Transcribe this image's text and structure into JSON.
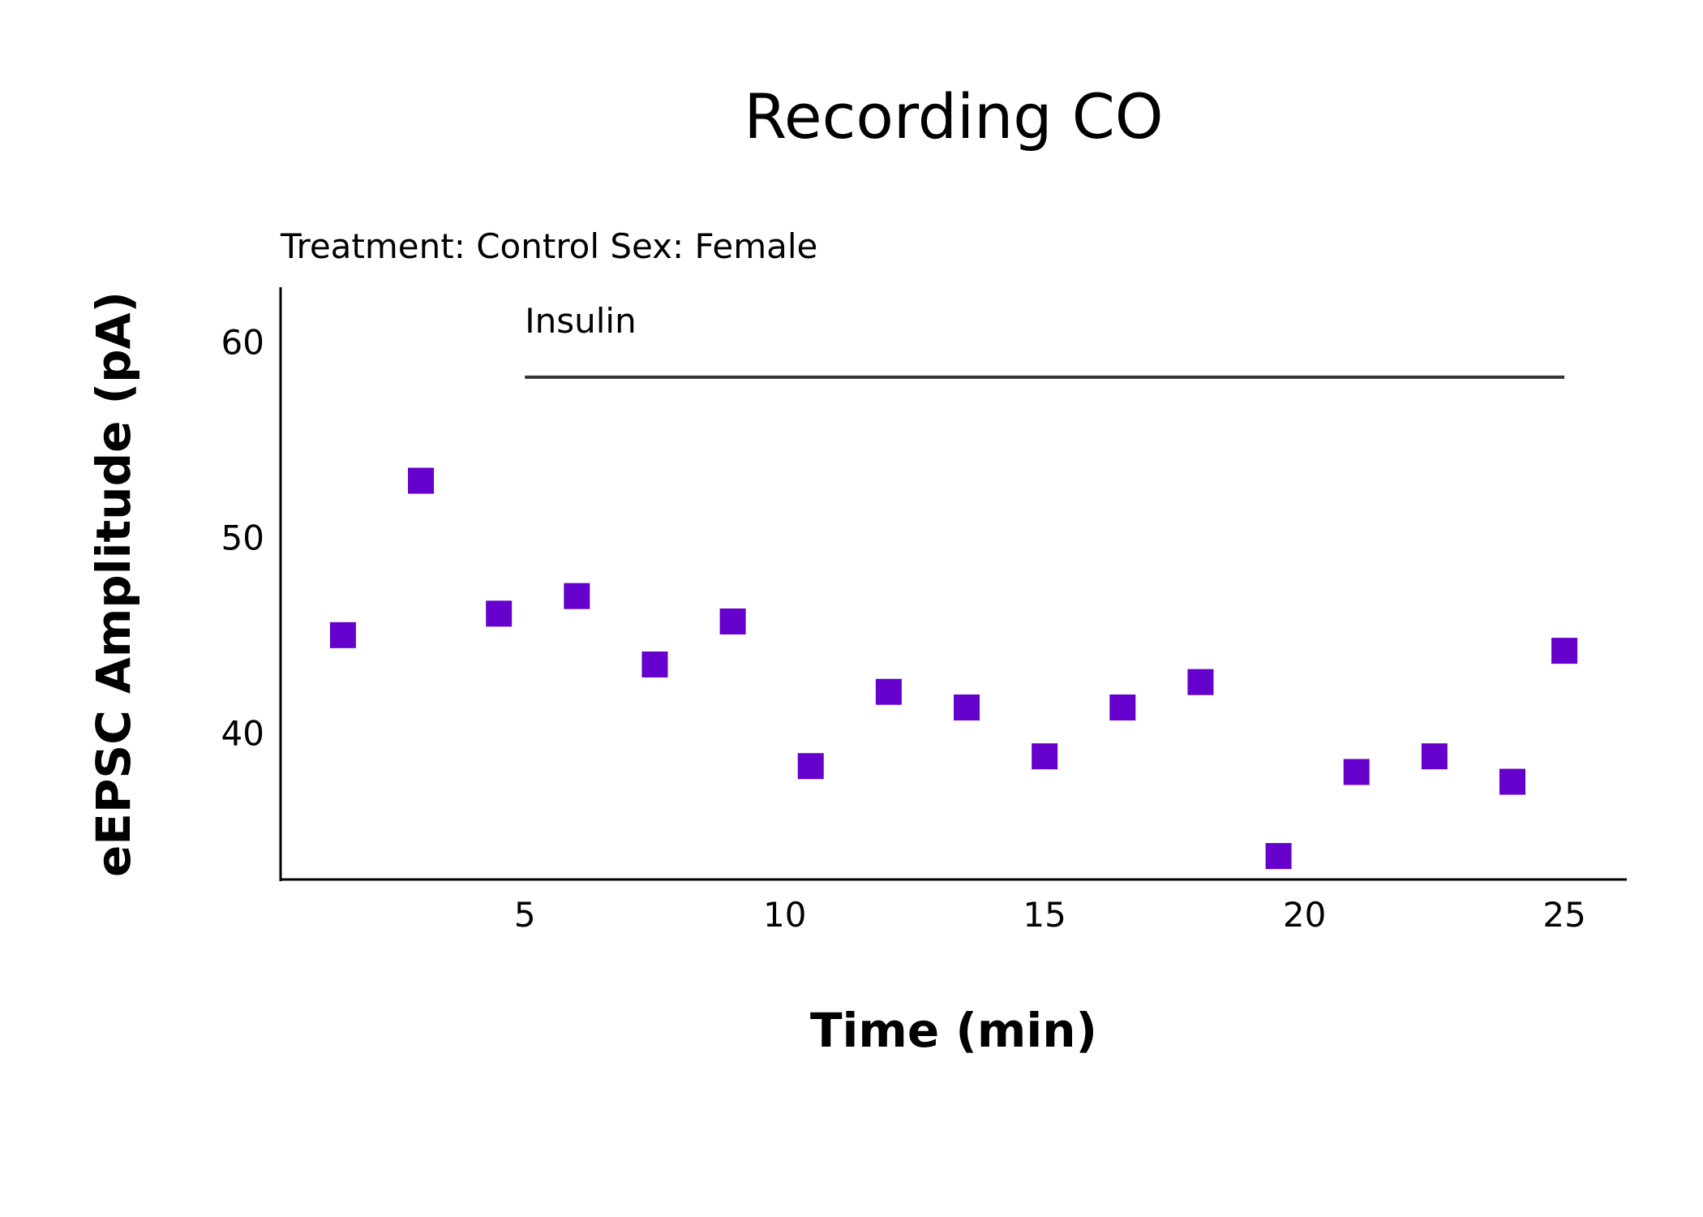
{
  "chart_data": {
    "type": "scatter",
    "title": "Recording CO",
    "subtitle": "Treatment: Control  Sex: Female",
    "xlabel": "Time (min)",
    "ylabel": "eEPSC Amplitude (pA)",
    "xlim": [
      0.3,
      26.2
    ],
    "ylim": [
      32.5,
      62.8
    ],
    "xticks": [
      5,
      10,
      15,
      20,
      25
    ],
    "yticks": [
      40,
      50,
      60
    ],
    "grid": false,
    "marker": "square",
    "color": "#6600CC",
    "series": [
      {
        "x": [
          1.5,
          3.0,
          4.5,
          6.0,
          7.5,
          9.0,
          10.5,
          12.0,
          13.5,
          15.0,
          16.5,
          18.0,
          19.5,
          21.0,
          22.5,
          24.0,
          25.0
        ],
        "y": [
          45.0,
          52.9,
          46.1,
          47.0,
          43.5,
          45.7,
          38.3,
          42.1,
          41.3,
          38.8,
          41.3,
          42.6,
          33.7,
          38.0,
          38.8,
          37.5,
          44.2
        ]
      }
    ],
    "annotation": {
      "label": "Insulin",
      "x_start": 5,
      "x_end": 25,
      "y": 58.2
    }
  }
}
